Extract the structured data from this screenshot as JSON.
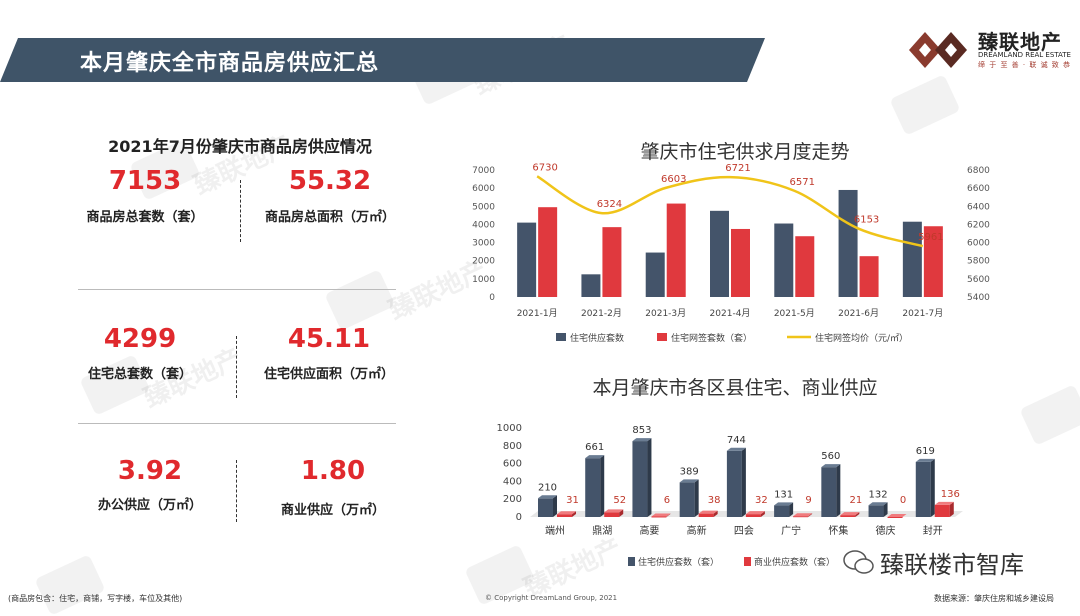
{
  "header": {
    "title": "本月肇庆全市商品房供应汇总",
    "logo_name": "臻联地产",
    "logo_en": "DREAMLAND REAL ESTATE",
    "logo_slogan": "缔 于 至 善 · 联 诚 致 恭"
  },
  "watermark": {
    "text": "臻联地产"
  },
  "stats": {
    "title": "2021年7月份肇庆市商品房供应情况",
    "items": [
      {
        "value": "7153",
        "label": "商品房总套数（套）"
      },
      {
        "value": "55.32",
        "label": "商品房总面积（万㎡）"
      },
      {
        "value": "4299",
        "label": "住宅总套数（套）"
      },
      {
        "value": "45.11",
        "label": "住宅供应面积（万㎡）"
      },
      {
        "value": "3.92",
        "label": "办公供应（万㎡）"
      },
      {
        "value": "1.80",
        "label": "商业供应（万㎡）"
      }
    ]
  },
  "footer": {
    "note": "(商品房包含：住宅，商铺，写字楼，车位及其他)",
    "copyright": "© Copyright  DreamLand Group, 2021",
    "source": "数据来源：肇庆住房和城乡建设局",
    "wechat": "臻联楼市智库"
  },
  "colors": {
    "dark_bar": "#44546a",
    "red_bar": "#e0393e",
    "line": "#f0c419",
    "banner": "#3f5468"
  },
  "chart_data": [
    {
      "type": "bar",
      "title": "肇庆市住宅供求月度走势",
      "categories": [
        "2021-1月",
        "2021-2月",
        "2021-3月",
        "2021-4月",
        "2021-5月",
        "2021-6月",
        "2021-7月"
      ],
      "series": [
        {
          "name": "住宅供应套数",
          "kind": "bar",
          "axis": "left",
          "values": [
            4100,
            1250,
            2450,
            4750,
            4050,
            5900,
            4150
          ]
        },
        {
          "name": "住宅网签套数（套）",
          "kind": "bar",
          "axis": "left",
          "values": [
            4950,
            3850,
            5150,
            3750,
            3350,
            2250,
            3900
          ]
        },
        {
          "name": "住宅网签均价（元/㎡）",
          "kind": "line",
          "axis": "right",
          "values": [
            6730,
            6324,
            6603,
            6721,
            6571,
            6153,
            5961
          ]
        }
      ],
      "yticks_left": [
        0,
        1000,
        2000,
        3000,
        4000,
        5000,
        6000,
        7000
      ],
      "yticks_right": [
        5400,
        5600,
        5800,
        6000,
        6200,
        6400,
        6600,
        6800
      ],
      "ylim_left": [
        0,
        7000
      ],
      "ylim_right": [
        5400,
        6800
      ],
      "legend_position": "bottom"
    },
    {
      "type": "bar",
      "title": "本月肇庆市各区县住宅、商业供应",
      "categories": [
        "端州",
        "鼎湖",
        "高要",
        "高新",
        "四会",
        "广宁",
        "怀集",
        "德庆",
        "封开"
      ],
      "series": [
        {
          "name": "住宅供应套数（套）",
          "values": [
            210,
            661,
            853,
            389,
            744,
            131,
            560,
            132,
            619
          ]
        },
        {
          "name": "商业供应套数（套）",
          "values": [
            31,
            52,
            6,
            38,
            32,
            9,
            21,
            0,
            136
          ]
        }
      ],
      "yticks": [
        0,
        200,
        400,
        600,
        800,
        1000
      ],
      "ylim": [
        0,
        1000
      ],
      "legend_position": "bottom"
    }
  ]
}
